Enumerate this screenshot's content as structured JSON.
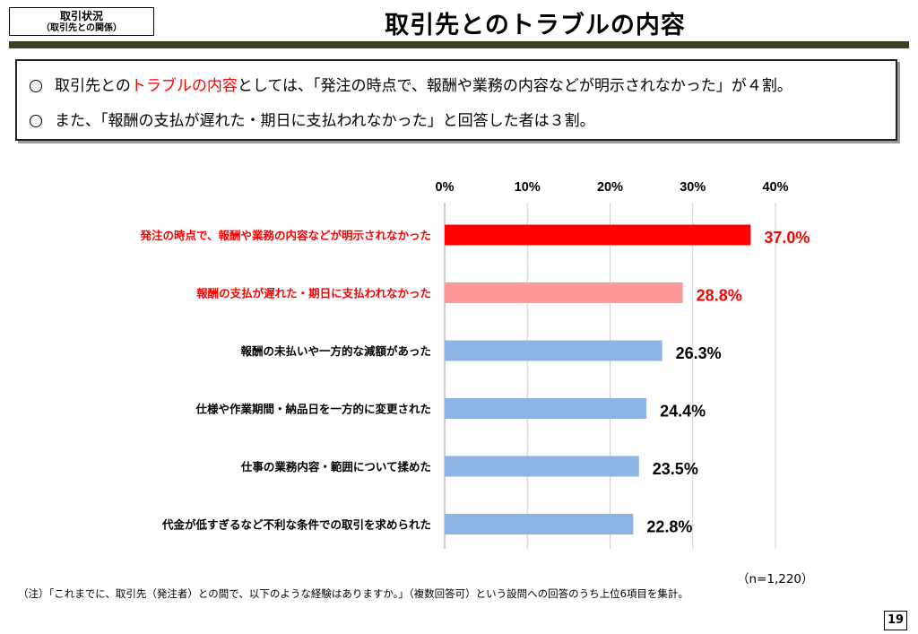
{
  "header": {
    "tag_line1": "取引状況",
    "tag_line2": "（取引先との関係）",
    "title": "取引先とのトラブルの内容"
  },
  "summary": {
    "line1": {
      "prefix": "取引先との",
      "highlight": "トラブルの内容",
      "suffix": "としては、「発注の時点で、報酬や業務の内容などが明示されなかった」が４割。"
    },
    "line2": "また、「報酬の支払が遅れた・期日に支払われなかった」と回答した者は３割。"
  },
  "chart_data": {
    "type": "bar",
    "orientation": "horizontal",
    "xlim": [
      0,
      40
    ],
    "ticks": [
      "0%",
      "10%",
      "20%",
      "30%",
      "40%"
    ],
    "tick_values": [
      0,
      10,
      20,
      30,
      40
    ],
    "gridlines": true,
    "categories": [
      "発注の時点で、報酬や業務の内容などが明示されなかった",
      "報酬の支払が遅れた・期日に支払われなかった",
      "報酬の未払いや一方的な減額があった",
      "仕様や作業期間・納品日を一方的に変更された",
      "仕事の業務内容・範囲について揉めた",
      "代金が低すぎるなど不利な条件での取引を求められた"
    ],
    "values": [
      37.0,
      28.8,
      26.3,
      24.4,
      23.5,
      22.8
    ],
    "value_labels": [
      "37.0%",
      "28.8%",
      "26.3%",
      "24.4%",
      "23.5%",
      "22.8%"
    ],
    "bar_colors": [
      "#ff0000",
      "#ff9999",
      "#8db3e2",
      "#8db3e2",
      "#8db3e2",
      "#8db3e2"
    ],
    "label_colors": [
      "#ff0000",
      "#ff0000",
      "#000000",
      "#000000",
      "#000000",
      "#000000"
    ]
  },
  "footer": {
    "sample": "（n=1,220）",
    "note": "（注）「これまでに、取引先（発注者）との間で、以下のような経験はありますか。」（複数回答可）という設問への回答のうち上位6項目を集計。",
    "page_number": "19"
  }
}
